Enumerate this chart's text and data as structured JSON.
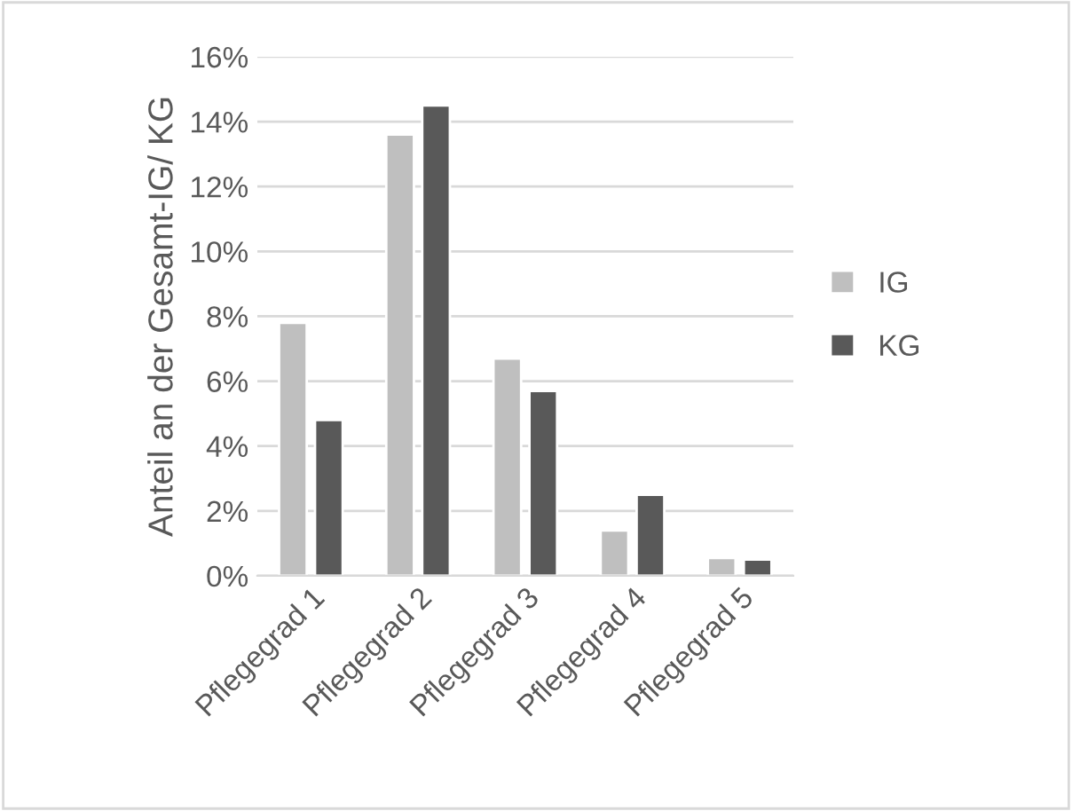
{
  "chart_data": {
    "type": "bar",
    "ylabel": "Anteil an der Gesamt-IG/ KG",
    "categories": [
      "Pflegegrad 1",
      "Pflegegrad 2",
      "Pflegegrad 3",
      "Pflegegrad 4",
      "Pflegegrad 5"
    ],
    "series": [
      {
        "name": "IG",
        "color": "#bfbfbf",
        "values": [
          7.8,
          13.6,
          6.7,
          1.4,
          0.55
        ]
      },
      {
        "name": "KG",
        "color": "#595959",
        "values": [
          4.8,
          14.5,
          5.7,
          2.5,
          0.5
        ]
      }
    ],
    "ylim": [
      0,
      16
    ],
    "yticks": [
      {
        "value": 0,
        "label": "0%"
      },
      {
        "value": 2,
        "label": "2%"
      },
      {
        "value": 4,
        "label": "4%"
      },
      {
        "value": 6,
        "label": "6%"
      },
      {
        "value": 8,
        "label": "8%"
      },
      {
        "value": 10,
        "label": "10%"
      },
      {
        "value": 12,
        "label": "12%"
      },
      {
        "value": 14,
        "label": "14%"
      },
      {
        "value": 16,
        "label": "16%"
      }
    ],
    "grid": "y",
    "legend": "right"
  }
}
